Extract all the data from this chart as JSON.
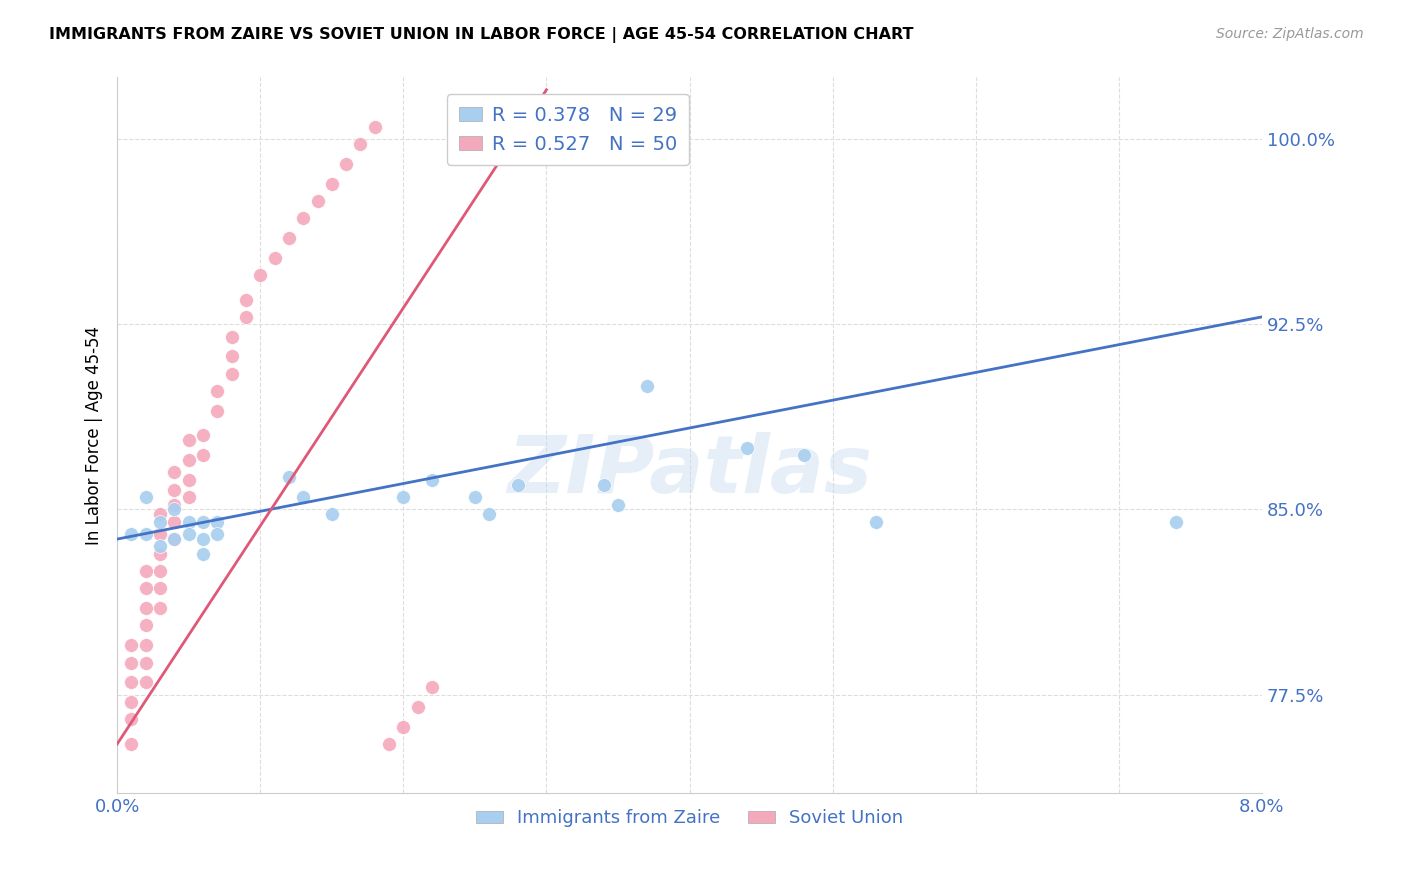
{
  "title": "IMMIGRANTS FROM ZAIRE VS SOVIET UNION IN LABOR FORCE | AGE 45-54 CORRELATION CHART",
  "source": "Source: ZipAtlas.com",
  "xlabel": "",
  "ylabel": "In Labor Force | Age 45-54",
  "xlim": [
    0.0,
    0.08
  ],
  "ylim": [
    0.735,
    1.025
  ],
  "xticks": [
    0.0,
    0.01,
    0.02,
    0.03,
    0.04,
    0.05,
    0.06,
    0.07,
    0.08
  ],
  "xticklabels": [
    "0.0%",
    "",
    "",
    "",
    "",
    "",
    "",
    "",
    "8.0%"
  ],
  "ytick_positions": [
    0.775,
    0.85,
    0.925,
    1.0
  ],
  "ytick_labels": [
    "77.5%",
    "85.0%",
    "92.5%",
    "100.0%"
  ],
  "legend_zaire_R": "R = 0.378",
  "legend_zaire_N": "N = 29",
  "legend_soviet_R": "R = 0.527",
  "legend_soviet_N": "N = 50",
  "color_zaire": "#A8CEF0",
  "color_soviet": "#F4A8BC",
  "color_zaire_line": "#4472C4",
  "color_soviet_line": "#E05878",
  "color_axis_text": "#4472C4",
  "zaire_x": [
    0.001,
    0.002,
    0.002,
    0.003,
    0.003,
    0.004,
    0.004,
    0.005,
    0.005,
    0.006,
    0.006,
    0.006,
    0.007,
    0.007,
    0.012,
    0.013,
    0.015,
    0.02,
    0.022,
    0.025,
    0.026,
    0.028,
    0.034,
    0.035,
    0.037,
    0.044,
    0.048,
    0.053,
    0.074
  ],
  "zaire_y": [
    0.84,
    0.855,
    0.84,
    0.845,
    0.835,
    0.85,
    0.838,
    0.845,
    0.84,
    0.845,
    0.838,
    0.832,
    0.845,
    0.84,
    0.863,
    0.855,
    0.848,
    0.855,
    0.862,
    0.855,
    0.848,
    0.86,
    0.86,
    0.852,
    0.9,
    0.875,
    0.872,
    0.845,
    0.845
  ],
  "soviet_x": [
    0.001,
    0.001,
    0.001,
    0.001,
    0.001,
    0.001,
    0.002,
    0.002,
    0.002,
    0.002,
    0.002,
    0.002,
    0.002,
    0.003,
    0.003,
    0.003,
    0.003,
    0.003,
    0.003,
    0.004,
    0.004,
    0.004,
    0.004,
    0.004,
    0.005,
    0.005,
    0.005,
    0.005,
    0.006,
    0.006,
    0.007,
    0.007,
    0.008,
    0.008,
    0.008,
    0.009,
    0.009,
    0.01,
    0.011,
    0.012,
    0.013,
    0.014,
    0.015,
    0.016,
    0.017,
    0.018,
    0.019,
    0.02,
    0.021,
    0.022
  ],
  "soviet_y": [
    0.755,
    0.765,
    0.772,
    0.78,
    0.788,
    0.795,
    0.78,
    0.788,
    0.795,
    0.803,
    0.81,
    0.818,
    0.825,
    0.81,
    0.818,
    0.825,
    0.832,
    0.84,
    0.848,
    0.838,
    0.845,
    0.852,
    0.858,
    0.865,
    0.855,
    0.862,
    0.87,
    0.878,
    0.872,
    0.88,
    0.89,
    0.898,
    0.905,
    0.912,
    0.92,
    0.928,
    0.935,
    0.945,
    0.952,
    0.96,
    0.968,
    0.975,
    0.982,
    0.99,
    0.998,
    1.005,
    0.755,
    0.762,
    0.77,
    0.778
  ],
  "background_color": "#FFFFFF",
  "grid_color": "#DDDDDD",
  "zaire_trendline_x": [
    0.0,
    0.08
  ],
  "zaire_trendline_y": [
    0.838,
    0.928
  ],
  "soviet_trendline_x": [
    0.0,
    0.03
  ],
  "soviet_trendline_y": [
    0.755,
    1.02
  ]
}
